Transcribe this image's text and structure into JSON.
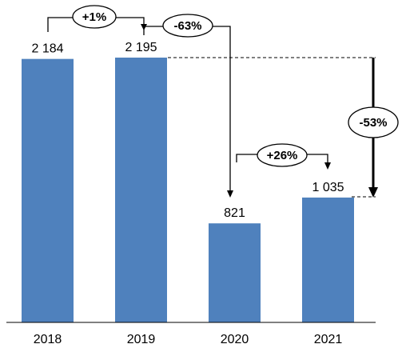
{
  "chart_data": {
    "type": "bar",
    "categories": [
      "2018",
      "2019",
      "2020",
      "2021"
    ],
    "values": [
      2184,
      2195,
      821,
      1035
    ],
    "value_labels": [
      "2 184",
      "2 195",
      "821",
      "1 035"
    ],
    "ylim": [
      0,
      2195
    ],
    "grid": false,
    "bar_color": "#4f81bd",
    "annotations": [
      {
        "label": "+1%",
        "from": "2018",
        "to": "2019"
      },
      {
        "label": "-63%",
        "from": "2019",
        "to": "2020"
      },
      {
        "label": "+26%",
        "from": "2020",
        "to": "2021"
      },
      {
        "label": "-53%",
        "from": "2019",
        "to": "2021"
      }
    ]
  }
}
